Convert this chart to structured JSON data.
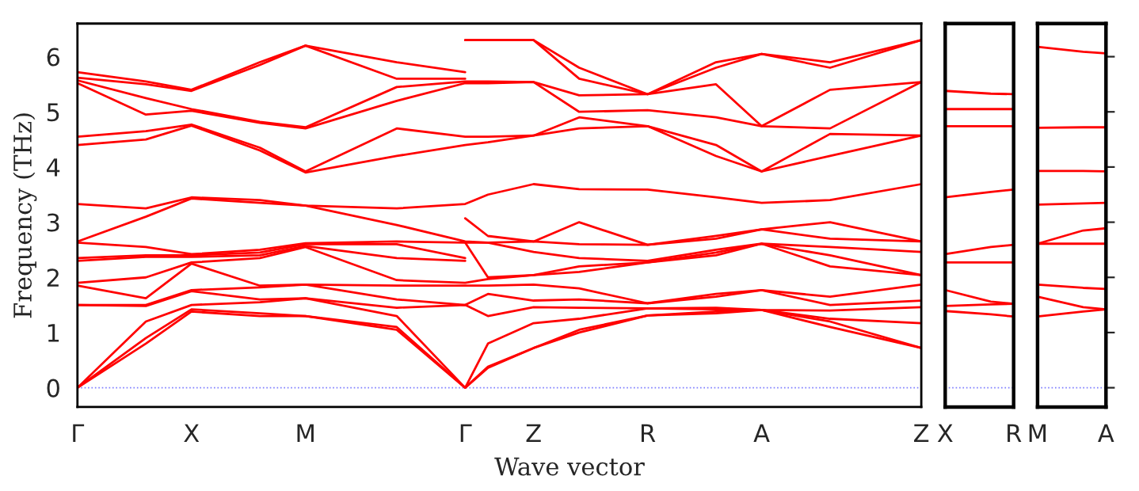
{
  "chart_data": [
    {
      "type": "line",
      "xlabel": "Wave vector",
      "ylabel": "Frequency (THz)",
      "ylim": [
        -0.35,
        6.6
      ],
      "yticks": [
        0,
        1,
        2,
        3,
        4,
        5,
        6
      ],
      "categories": [
        "Γ",
        null,
        null,
        null,
        null,
        "X",
        null,
        null,
        null,
        null,
        "M",
        null,
        null,
        null,
        null,
        null,
        null,
        "Γ",
        null,
        null,
        "Z",
        null,
        null,
        null,
        null,
        "R",
        null,
        null,
        null,
        null,
        "A",
        null,
        null,
        null,
        null,
        null,
        null,
        "Z"
      ],
      "ref_lines": [
        {
          "axis": "y",
          "value": 0,
          "color": "#8080ff",
          "line_style": "dotted"
        }
      ],
      "series": [
        {
          "color": "#ff0000",
          "values": [
            0,
            null,
            null,
            0.8,
            null,
            1.38,
            null,
            null,
            1.3,
            null,
            1.3,
            null,
            null,
            null,
            1.05,
            null,
            null,
            0,
            0.36,
            null,
            0.72,
            null,
            1.0,
            null,
            null,
            1.31,
            null,
            null,
            1.35,
            null,
            1.41,
            null,
            null,
            1.1,
            null,
            null,
            null,
            0.72
          ]
        },
        {
          "color": "#ff0000",
          "values": [
            0,
            null,
            null,
            0.9,
            null,
            1.42,
            null,
            null,
            1.35,
            null,
            1.3,
            null,
            null,
            null,
            1.1,
            null,
            null,
            0,
            0.38,
            null,
            0.72,
            null,
            1.05,
            null,
            null,
            1.31,
            null,
            null,
            1.38,
            null,
            1.41,
            null,
            null,
            1.2,
            null,
            null,
            null,
            0.72
          ]
        },
        {
          "color": "#ff0000",
          "values": [
            0,
            null,
            null,
            1.2,
            null,
            1.5,
            null,
            null,
            1.55,
            null,
            1.62,
            null,
            null,
            null,
            1.3,
            null,
            null,
            0,
            0.8,
            null,
            1.17,
            null,
            1.25,
            null,
            null,
            1.44,
            null,
            null,
            1.42,
            null,
            1.41,
            null,
            null,
            1.25,
            null,
            null,
            null,
            1.17
          ]
        },
        {
          "color": "#ff0000",
          "values": [
            1.5,
            null,
            null,
            1.48,
            null,
            1.75,
            null,
            null,
            1.6,
            null,
            1.62,
            null,
            null,
            null,
            1.45,
            null,
            null,
            1.5,
            1.3,
            null,
            1.46,
            null,
            1.45,
            null,
            null,
            1.44,
            null,
            null,
            1.45,
            null,
            1.41,
            null,
            null,
            1.4,
            null,
            null,
            null,
            1.46
          ]
        },
        {
          "color": "#ff0000",
          "values": [
            1.5,
            null,
            null,
            1.5,
            null,
            1.77,
            null,
            null,
            1.82,
            null,
            1.87,
            null,
            null,
            null,
            1.6,
            null,
            null,
            1.5,
            1.7,
            null,
            1.58,
            null,
            1.6,
            null,
            null,
            1.53,
            null,
            null,
            1.65,
            null,
            1.77,
            null,
            null,
            1.5,
            null,
            null,
            null,
            1.58
          ]
        },
        {
          "color": "#ff0000",
          "values": [
            1.85,
            null,
            null,
            1.62,
            null,
            2.25,
            null,
            null,
            1.85,
            null,
            1.87,
            null,
            null,
            null,
            1.85,
            null,
            null,
            1.85,
            1.85,
            null,
            1.87,
            null,
            1.8,
            null,
            null,
            1.53,
            null,
            null,
            1.7,
            null,
            1.77,
            null,
            null,
            1.65,
            null,
            null,
            null,
            1.87
          ]
        },
        {
          "color": "#ff0000",
          "values": [
            1.9,
            null,
            null,
            2.0,
            null,
            2.27,
            null,
            null,
            2.35,
            null,
            2.55,
            null,
            null,
            null,
            1.95,
            null,
            null,
            1.9,
            1.97,
            null,
            2.04,
            null,
            2.1,
            null,
            null,
            2.27,
            null,
            null,
            2.4,
            null,
            2.61,
            null,
            null,
            2.2,
            null,
            null,
            null,
            2.04
          ]
        },
        {
          "color": "#ff0000",
          "values": [
            2.63,
            null,
            null,
            2.55,
            null,
            2.42,
            null,
            null,
            2.5,
            null,
            2.62,
            null,
            null,
            null,
            2.65,
            null,
            null,
            2.63,
            2.0,
            null,
            2.04,
            null,
            2.2,
            null,
            null,
            2.27,
            null,
            null,
            2.45,
            null,
            2.61,
            null,
            null,
            2.4,
            null,
            null,
            null,
            2.04
          ]
        },
        {
          "color": "#ff0000",
          "values": [
            2.65,
            null,
            null,
            3.1,
            null,
            3.43,
            null,
            null,
            3.35,
            null,
            3.3,
            null,
            null,
            null,
            2.95,
            null,
            null,
            2.65,
            2.63,
            null,
            2.65,
            null,
            2.6,
            null,
            null,
            2.59,
            null,
            null,
            2.7,
            null,
            2.87,
            null,
            null,
            2.7,
            null,
            null,
            null,
            2.65
          ]
        },
        {
          "color": "#ff0000",
          "values": [
            3.33,
            null,
            null,
            3.25,
            null,
            3.45,
            null,
            null,
            3.4,
            null,
            3.3,
            null,
            null,
            null,
            3.25,
            null,
            null,
            3.33,
            3.5,
            null,
            3.69,
            null,
            3.6,
            null,
            null,
            3.59,
            null,
            null,
            3.45,
            null,
            3.35,
            null,
            null,
            3.4,
            null,
            null,
            null,
            3.69
          ]
        },
        {
          "color": "#ff0000",
          "values": [
            4.4,
            null,
            null,
            4.5,
            null,
            4.75,
            null,
            null,
            4.3,
            null,
            3.9,
            null,
            null,
            null,
            4.2,
            null,
            null,
            4.4,
            4.45,
            null,
            4.57,
            null,
            4.7,
            null,
            null,
            4.74,
            null,
            null,
            4.2,
            null,
            3.92,
            null,
            null,
            4.2,
            null,
            null,
            null,
            4.57
          ]
        },
        {
          "color": "#ff0000",
          "values": [
            4.55,
            null,
            null,
            4.65,
            null,
            4.77,
            null,
            null,
            4.35,
            null,
            3.92,
            null,
            null,
            null,
            4.7,
            null,
            null,
            4.55,
            4.55,
            null,
            4.57,
            null,
            4.9,
            null,
            null,
            4.74,
            null,
            null,
            4.4,
            null,
            3.92,
            null,
            null,
            4.6,
            null,
            null,
            null,
            4.57
          ]
        },
        {
          "color": "#ff0000",
          "values": [
            5.52,
            null,
            null,
            4.95,
            null,
            5.02,
            null,
            null,
            4.8,
            null,
            4.7,
            null,
            null,
            null,
            5.2,
            null,
            null,
            5.52,
            5.52,
            null,
            5.54,
            null,
            5.0,
            null,
            null,
            5.03,
            null,
            null,
            4.9,
            null,
            4.74,
            null,
            null,
            4.7,
            null,
            null,
            null,
            5.54
          ]
        },
        {
          "color": "#ff0000",
          "values": [
            5.57,
            null,
            null,
            5.25,
            null,
            5.05,
            null,
            null,
            4.82,
            null,
            4.72,
            null,
            null,
            null,
            5.45,
            null,
            null,
            5.55,
            5.55,
            null,
            5.54,
            null,
            5.3,
            null,
            null,
            5.32,
            null,
            null,
            5.5,
            null,
            4.74,
            null,
            null,
            5.4,
            null,
            null,
            null,
            5.54
          ]
        },
        {
          "color": "#ff0000",
          "values": [
            2.3,
            null,
            null,
            2.37,
            null,
            2.37,
            null,
            null,
            2.4,
            null,
            2.57,
            null,
            null,
            null,
            2.35,
            null,
            null,
            2.3,
            null,
            null,
            null,
            null,
            null,
            null,
            null,
            null,
            null,
            null,
            null,
            null,
            null,
            null,
            null,
            null,
            null,
            null,
            null,
            null
          ]
        },
        {
          "color": "#ff0000",
          "values": [
            2.35,
            null,
            null,
            2.4,
            null,
            2.4,
            null,
            null,
            2.45,
            null,
            2.6,
            null,
            null,
            null,
            2.6,
            null,
            null,
            2.35,
            null,
            null,
            null,
            null,
            null,
            null,
            null,
            null,
            null,
            null,
            null,
            null,
            null,
            null,
            null,
            null,
            null,
            null,
            null,
            null
          ]
        },
        {
          "color": "#ff0000",
          "values": [
            5.62,
            null,
            null,
            5.5,
            null,
            5.38,
            null,
            null,
            5.85,
            null,
            6.2,
            null,
            null,
            null,
            5.6,
            null,
            null,
            5.6,
            null,
            null,
            null,
            null,
            null,
            null,
            null,
            null,
            null,
            null,
            null,
            null,
            null,
            null,
            null,
            null,
            null,
            null,
            null,
            null
          ]
        },
        {
          "color": "#ff0000",
          "values": [
            5.72,
            null,
            null,
            5.55,
            null,
            5.4,
            null,
            null,
            5.9,
            null,
            6.2,
            null,
            null,
            null,
            5.9,
            null,
            null,
            5.72,
            null,
            null,
            null,
            null,
            null,
            null,
            null,
            null,
            null,
            null,
            null,
            null,
            null,
            null,
            null,
            null,
            null,
            null,
            null,
            null
          ]
        },
        {
          "color": "#ff0000",
          "values": [
            null,
            null,
            null,
            null,
            null,
            null,
            null,
            null,
            null,
            null,
            null,
            null,
            null,
            null,
            null,
            null,
            null,
            2.63,
            2.63,
            null,
            2.46,
            null,
            2.35,
            null,
            null,
            2.3,
            null,
            null,
            2.5,
            null,
            2.61,
            null,
            null,
            2.55,
            null,
            null,
            null,
            2.46
          ]
        },
        {
          "color": "#ff0000",
          "values": [
            null,
            null,
            null,
            null,
            null,
            null,
            null,
            null,
            null,
            null,
            null,
            null,
            null,
            null,
            null,
            null,
            null,
            3.07,
            2.75,
            null,
            2.65,
            null,
            3.0,
            null,
            null,
            2.59,
            null,
            null,
            2.75,
            null,
            2.87,
            null,
            null,
            3.0,
            null,
            null,
            null,
            2.65
          ]
        },
        {
          "color": "#ff0000",
          "values": [
            null,
            null,
            null,
            null,
            null,
            null,
            null,
            null,
            null,
            null,
            null,
            null,
            null,
            null,
            null,
            null,
            null,
            6.3,
            6.3,
            null,
            6.3,
            null,
            5.6,
            null,
            null,
            5.32,
            null,
            null,
            5.8,
            null,
            6.05,
            null,
            null,
            5.8,
            null,
            null,
            null,
            6.3
          ]
        },
        {
          "color": "#ff0000",
          "values": [
            null,
            null,
            null,
            null,
            null,
            null,
            null,
            null,
            null,
            null,
            null,
            null,
            null,
            null,
            null,
            null,
            null,
            6.3,
            6.3,
            null,
            6.3,
            null,
            5.8,
            null,
            null,
            5.32,
            null,
            null,
            5.9,
            null,
            6.05,
            null,
            null,
            5.9,
            null,
            null,
            null,
            6.3
          ]
        }
      ]
    },
    {
      "type": "line",
      "ylim": [
        -0.35,
        6.6
      ],
      "yticks": [
        0,
        1,
        2,
        3,
        4,
        5,
        6
      ],
      "tick_labels": "x",
      "categories": [
        "X",
        null,
        null,
        "R"
      ],
      "ref_lines": [
        {
          "axis": "y",
          "value": 0,
          "color": "#8080ff",
          "line_style": "dotted"
        }
      ],
      "series": [
        {
          "color": "#ff0000",
          "values": [
            1.39,
            null,
            1.33,
            1.29
          ]
        },
        {
          "color": "#ff0000",
          "values": [
            1.48,
            null,
            1.51,
            1.52
          ]
        },
        {
          "color": "#ff0000",
          "values": [
            1.77,
            null,
            1.56,
            1.52
          ]
        },
        {
          "color": "#ff0000",
          "values": [
            2.27,
            null,
            2.27,
            2.27
          ]
        },
        {
          "color": "#ff0000",
          "values": [
            2.42,
            null,
            2.55,
            2.59
          ]
        },
        {
          "color": "#ff0000",
          "values": [
            3.45,
            null,
            3.55,
            3.59
          ]
        },
        {
          "color": "#ff0000",
          "values": [
            4.74,
            null,
            4.74,
            4.74
          ]
        },
        {
          "color": "#ff0000",
          "values": [
            5.05,
            null,
            5.05,
            5.05
          ]
        },
        {
          "color": "#ff0000",
          "values": [
            5.38,
            null,
            5.33,
            5.32
          ]
        }
      ]
    },
    {
      "type": "line",
      "ylim": [
        -0.35,
        6.6
      ],
      "yticks": [
        0,
        1,
        2,
        3,
        4,
        5,
        6
      ],
      "tick_labels": "x",
      "categories": [
        "M",
        null,
        null,
        "A"
      ],
      "ref_lines": [
        {
          "axis": "y",
          "value": 0,
          "color": "#8080ff",
          "line_style": "dotted"
        }
      ],
      "series": [
        {
          "color": "#ff0000",
          "values": [
            1.29,
            null,
            1.38,
            1.42
          ]
        },
        {
          "color": "#ff0000",
          "values": [
            1.65,
            null,
            1.46,
            1.42
          ]
        },
        {
          "color": "#ff0000",
          "values": [
            1.87,
            null,
            1.81,
            1.79
          ]
        },
        {
          "color": "#ff0000",
          "values": [
            2.61,
            null,
            2.61,
            2.61
          ]
        },
        {
          "color": "#ff0000",
          "values": [
            2.61,
            null,
            2.85,
            2.89
          ]
        },
        {
          "color": "#ff0000",
          "values": [
            3.32,
            null,
            3.34,
            3.35
          ]
        },
        {
          "color": "#ff0000",
          "values": [
            3.93,
            null,
            3.93,
            3.92
          ]
        },
        {
          "color": "#ff0000",
          "values": [
            4.71,
            null,
            4.72,
            4.72
          ]
        },
        {
          "color": "#ff0000",
          "values": [
            6.18,
            null,
            6.09,
            6.06
          ]
        }
      ]
    }
  ]
}
